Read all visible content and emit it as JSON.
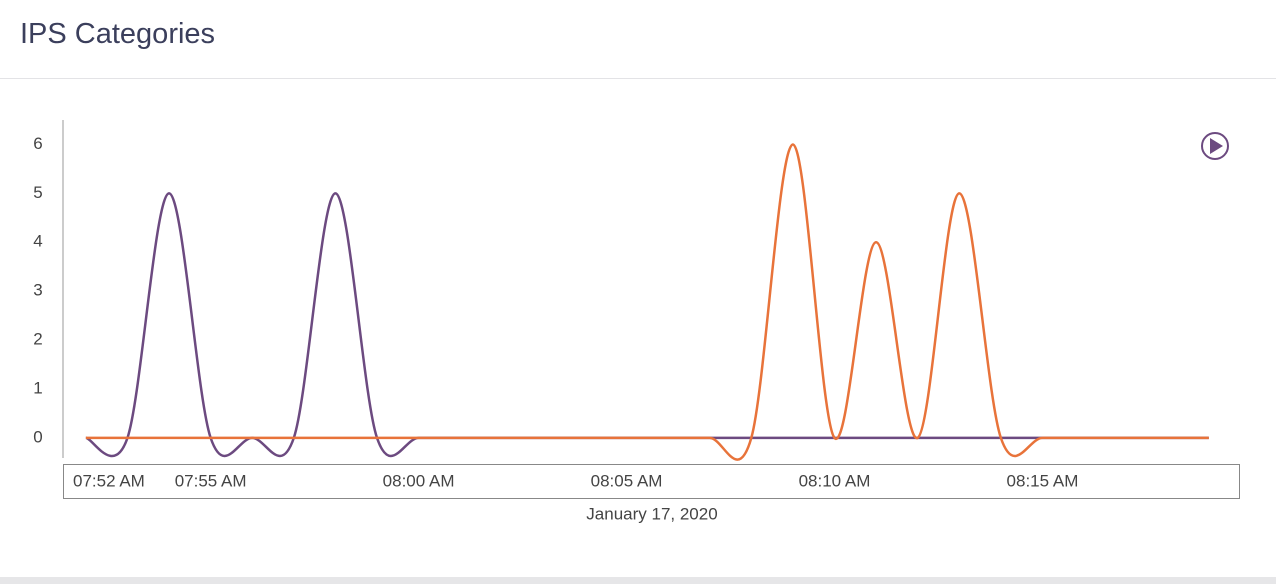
{
  "header": {
    "title": "IPS Categories"
  },
  "chart_data": {
    "type": "line",
    "x_label": "January 17, 2020",
    "x": [
      472,
      473,
      474,
      475,
      476,
      477,
      478,
      479,
      480,
      481,
      482,
      483,
      484,
      485,
      486,
      487,
      488,
      489,
      490,
      491,
      492,
      493,
      494,
      495,
      496,
      497,
      498,
      499
    ],
    "series": [
      {
        "color": "#6c4a80",
        "values": [
          0,
          0,
          5,
          0,
          0,
          0,
          5,
          0,
          0,
          0,
          0,
          0,
          0,
          0,
          0,
          0,
          0,
          0,
          0,
          0,
          0,
          0,
          0,
          0,
          0,
          0,
          0,
          0
        ]
      },
      {
        "color": "#e8733a",
        "values": [
          0,
          0,
          0,
          0,
          0,
          0,
          0,
          0,
          0,
          0,
          0,
          0,
          0,
          0,
          0,
          0,
          0,
          6,
          0,
          4,
          0,
          5,
          0,
          0,
          0,
          0,
          0,
          0
        ]
      }
    ],
    "xlim": [
      471.45,
      499.75
    ],
    "xticks": [
      {
        "value": 472,
        "label": "07:52 AM"
      },
      {
        "value": 475,
        "label": "07:55 AM"
      },
      {
        "value": 480,
        "label": "08:00 AM"
      },
      {
        "value": 485,
        "label": "08:05 AM"
      },
      {
        "value": 490,
        "label": "08:10 AM"
      },
      {
        "value": 495,
        "label": "08:15 AM"
      }
    ],
    "ylim": [
      -0.35,
      6.5
    ],
    "yticks": [
      0,
      1,
      2,
      3,
      4,
      5,
      6
    ],
    "grid": false
  }
}
